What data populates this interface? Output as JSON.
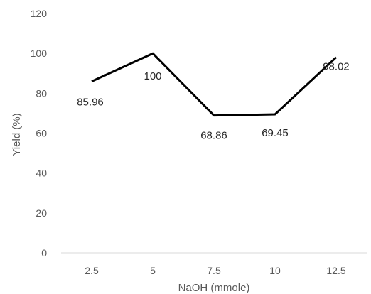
{
  "chart_data": {
    "type": "line",
    "x": [
      "2.5",
      "5",
      "7.5",
      "10",
      "12.5"
    ],
    "series": [
      {
        "values": [
          85.96,
          100,
          68.86,
          69.45,
          98.02
        ],
        "color": "#000000"
      }
    ],
    "data_labels": [
      "85.96",
      "100",
      "68.86",
      "69.45",
      "98.02"
    ],
    "yticks": [
      "0",
      "20",
      "40",
      "60",
      "80",
      "100",
      "120"
    ],
    "ylim": [
      0,
      120
    ],
    "xlabel": "NaOH (mmole)",
    "ylabel": "Yield  (%)",
    "grid": false,
    "legend": "none"
  }
}
